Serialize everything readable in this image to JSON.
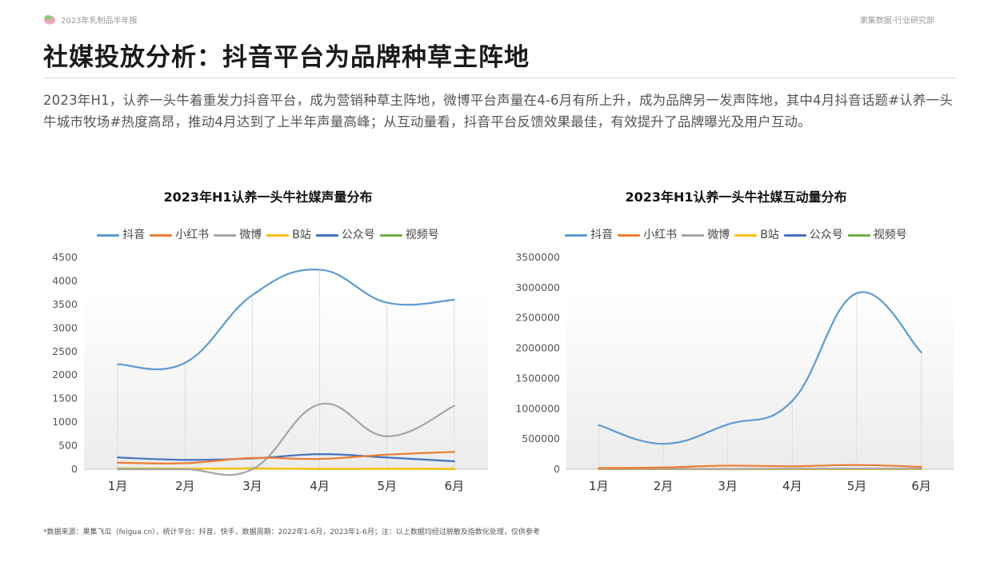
{
  "header": {
    "report_title": "2023年乳制品半年报",
    "brand": "果集数据·行业研究部"
  },
  "page": {
    "title": "社媒投放分析：抖音平台为品牌种草主阵地",
    "description": "2023年H1，认养一头牛着重发力抖音平台，成为营销种草主阵地，微博平台声量在4-6月有所上升，成为品牌另一发声阵地，其中4月抖音话题#认养一头牛城市牧场#热度高昂，推动4月达到了上半年声量高峰；从互动量看，抖音平台反馈效果最佳，有效提升了品牌曝光及用户互动。"
  },
  "footnote": "*数据来源：果集飞瓜（feigua.cn），统计平台：抖音、快手，数据周期：2022年1-6月，2023年1-6月；注：以上数据均经过脱敏及指数化处理，仅供参考",
  "colors": {
    "douyin": "#5b9bd5",
    "xiaohongshu": "#ed7d31",
    "weibo": "#a5a5a5",
    "bilibili": "#ffc000",
    "gongzhonghao": "#4472c4",
    "shipinhao": "#70ad47"
  },
  "chart_data": [
    {
      "type": "line",
      "title": "2023年H1认养一头牛社媒声量分布",
      "categories": [
        "1月",
        "2月",
        "3月",
        "4月",
        "5月",
        "6月"
      ],
      "ylim": [
        0,
        4500
      ],
      "yticks": [
        "0",
        "500",
        "1000",
        "1500",
        "2000",
        "2500",
        "3000",
        "3500",
        "4000",
        "4500"
      ],
      "legend_position": "top",
      "smooth": true,
      "series": [
        {
          "name": "抖音",
          "color": "#5b9bd5",
          "values": [
            2230,
            2260,
            3700,
            4240,
            3540,
            3600
          ]
        },
        {
          "name": "小红书",
          "color": "#ed7d31",
          "values": [
            140,
            130,
            240,
            220,
            310,
            370
          ]
        },
        {
          "name": "微博",
          "color": "#a5a5a5",
          "values": [
            0,
            0,
            0,
            1380,
            700,
            1350
          ]
        },
        {
          "name": "B站",
          "color": "#ffc000",
          "values": [
            10,
            10,
            15,
            10,
            10,
            10
          ]
        },
        {
          "name": "公众号",
          "color": "#4472c4",
          "values": [
            250,
            200,
            230,
            320,
            250,
            170
          ]
        },
        {
          "name": "视频号",
          "color": "#70ad47",
          "values": [
            20,
            10,
            20,
            5,
            10,
            5
          ]
        }
      ]
    },
    {
      "type": "line",
      "title": "2023年H1认养一头牛社媒互动量分布",
      "categories": [
        "1月",
        "2月",
        "3月",
        "4月",
        "5月",
        "6月"
      ],
      "ylim": [
        0,
        3500000
      ],
      "yticks": [
        "0",
        "500000",
        "1000000",
        "1500000",
        "2000000",
        "2500000",
        "3000000",
        "3500000"
      ],
      "legend_position": "top",
      "smooth": true,
      "series": [
        {
          "name": "抖音",
          "color": "#5b9bd5",
          "values": [
            730000,
            420000,
            740000,
            1130000,
            2910000,
            1930000
          ]
        },
        {
          "name": "小红书",
          "color": "#ed7d31",
          "values": [
            20000,
            30000,
            60000,
            50000,
            70000,
            40000
          ]
        },
        {
          "name": "微博",
          "color": "#a5a5a5",
          "values": [
            5000,
            5000,
            5000,
            10000,
            10000,
            10000
          ]
        },
        {
          "name": "B站",
          "color": "#ffc000",
          "values": [
            2000,
            2000,
            2000,
            2000,
            2000,
            2000
          ]
        },
        {
          "name": "公众号",
          "color": "#4472c4",
          "values": [
            3000,
            3000,
            3000,
            3000,
            3000,
            3000
          ]
        },
        {
          "name": "视频号",
          "color": "#70ad47",
          "values": [
            1000,
            1000,
            1000,
            1000,
            1000,
            1000
          ]
        }
      ]
    }
  ]
}
